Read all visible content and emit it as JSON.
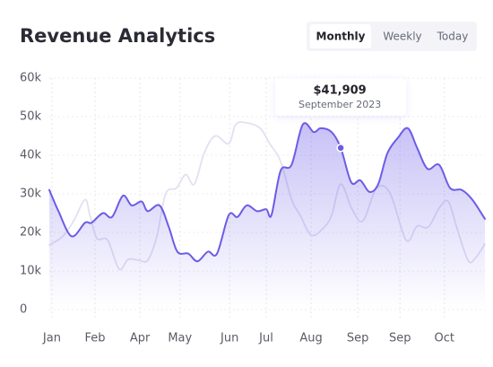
{
  "title": "Revenue Analytics",
  "tabs": [
    {
      "label": "Monthly",
      "active": true
    },
    {
      "label": "Weekly",
      "active": false
    },
    {
      "label": "Today",
      "active": false
    }
  ],
  "chart_data": {
    "type": "line",
    "xlim": [
      0,
      100
    ],
    "xticks": [
      {
        "value": 0.6,
        "label": "Jan"
      },
      {
        "value": 10.5,
        "label": "Feb"
      },
      {
        "value": 20.8,
        "label": "Apr"
      },
      {
        "value": 30,
        "label": "May"
      },
      {
        "value": 41.4,
        "label": "Jun"
      },
      {
        "value": 49.8,
        "label": "Jul"
      },
      {
        "value": 60.1,
        "label": "Aug"
      },
      {
        "value": 70.8,
        "label": "Sep"
      },
      {
        "value": 80.5,
        "label": "Sep"
      },
      {
        "value": 90.7,
        "label": "Oct"
      }
    ],
    "ylim": [
      0,
      60000
    ],
    "yticks": [
      0,
      {
        "value": 10000,
        "label": "10k"
      },
      {
        "value": 20000,
        "label": "20k"
      },
      {
        "value": 30000,
        "label": "30k"
      },
      {
        "value": 40000,
        "label": "40k"
      },
      {
        "value": 50000,
        "label": "50k"
      },
      {
        "value": 60000,
        "label": "60k"
      }
    ],
    "grid": true,
    "series": [
      {
        "color": "#e3e0f2",
        "area": false,
        "x": [
          0,
          3.1,
          5.6,
          8.2,
          9.3,
          10.9,
          13.4,
          16,
          18.1,
          20.6,
          22.6,
          24.7,
          26.7,
          29.2,
          31.3,
          33.3,
          35.6,
          38.1,
          41.2,
          42.8,
          45.3,
          48.4,
          50.6,
          53.1,
          55.6,
          57.6,
          60.1,
          62.8,
          64.8,
          66.9,
          69.5,
          72,
          75.1,
          78.2,
          81.9,
          84.4,
          87,
          89.5,
          91.6,
          93.6,
          96.1,
          97.7,
          100
        ],
        "values": [
          16700,
          19000,
          23000,
          28500,
          24500,
          18500,
          18000,
          10500,
          13000,
          12800,
          12800,
          19000,
          30000,
          31500,
          35000,
          32500,
          40700,
          45000,
          43000,
          48000,
          48400,
          47000,
          43000,
          38400,
          28600,
          24400,
          19300,
          21000,
          24400,
          32500,
          26000,
          23000,
          31400,
          30200,
          18000,
          21600,
          21400,
          26300,
          28000,
          21000,
          12800,
          13200,
          17000
        ]
      },
      {
        "color": "#6b5ce7",
        "area": true,
        "x": [
          0,
          2.1,
          5.1,
          8.2,
          9.7,
          12.3,
          14.4,
          16.9,
          18.9,
          21.2,
          22.6,
          25.3,
          27.4,
          29.4,
          31.9,
          34,
          36.4,
          38.5,
          41.2,
          43.2,
          45.3,
          47.7,
          49.8,
          51,
          53.1,
          55.6,
          58.2,
          60.7,
          62.3,
          64.8,
          66.9,
          69.3,
          71.4,
          73.5,
          75.5,
          77.6,
          80,
          82.3,
          84.4,
          86.8,
          89.5,
          92,
          94.7,
          97.1,
          100
        ],
        "values": [
          31000,
          25500,
          19000,
          22500,
          22500,
          25000,
          24000,
          29500,
          27000,
          28000,
          25500,
          27000,
          21500,
          15000,
          14500,
          12500,
          15000,
          14500,
          24500,
          24000,
          27000,
          25500,
          26000,
          24500,
          36000,
          37500,
          48000,
          46000,
          47000,
          46000,
          41909,
          33000,
          33500,
          30500,
          32500,
          40500,
          44500,
          47000,
          42000,
          36500,
          37500,
          31500,
          31000,
          28500,
          23500
        ]
      }
    ],
    "tooltip": {
      "x": 66.9,
      "value": 41909,
      "value_label": "$41,909",
      "date": "September 2023"
    }
  }
}
